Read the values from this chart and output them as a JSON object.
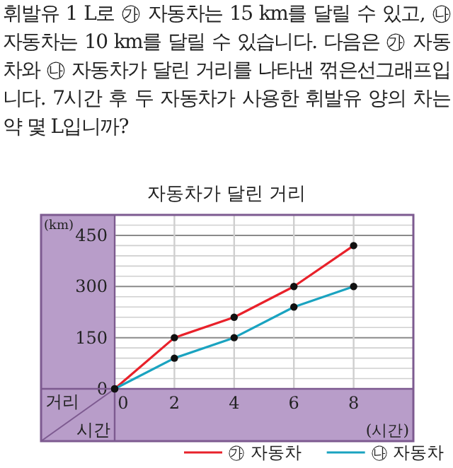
{
  "chart_data": {
    "type": "line",
    "title": "자동차가 달린 거리",
    "xlabel": "시간",
    "ylabel": "거리",
    "annotations": [
      "휘발유 1 L로 ㉮ 자동차는 15 km를 달릴 수 있고, ㉯ 자동차는 10 km를 달릴 수 있습니다. 다음은 ㉮ 자동차와 ㉯ 자동차가 달린 거리를 나타낸 꺾은선그래프입니다. 7시간 후 두 자동차가 사용한 휘발유 양의 차는 약 몇 L입니까?",
      "(km)",
      "(시간)"
    ],
    "x": [
      0,
      2,
      4,
      6,
      8
    ],
    "series": [
      {
        "name": "㉮ 자동차",
        "color": "#e8212a",
        "values": [
          0,
          150,
          210,
          300,
          420
        ]
      },
      {
        "name": "㉯ 자동차",
        "color": "#1aa3c0",
        "values": [
          0,
          90,
          150,
          240,
          300
        ]
      }
    ],
    "xlim": [
      0,
      10
    ],
    "xticks": [
      0,
      2,
      4,
      6,
      8
    ],
    "ylim": [
      0,
      510
    ],
    "yticks": [
      0,
      {
        "value": 30,
        "label": null
      },
      {
        "value": 60,
        "label": null
      },
      {
        "value": 90,
        "label": null
      },
      {
        "value": 120,
        "label": null
      },
      150,
      {
        "value": 180,
        "label": null
      },
      {
        "value": 210,
        "label": null
      },
      {
        "value": 240,
        "label": null
      },
      {
        "value": 270,
        "label": null
      },
      300,
      {
        "value": 330,
        "label": null
      },
      {
        "value": 360,
        "label": null
      },
      {
        "value": 390,
        "label": null
      },
      {
        "value": 420,
        "label": null
      },
      450,
      {
        "value": 480,
        "label": null
      }
    ],
    "grid": true,
    "marker": "circle",
    "legend": "bottom right"
  }
}
